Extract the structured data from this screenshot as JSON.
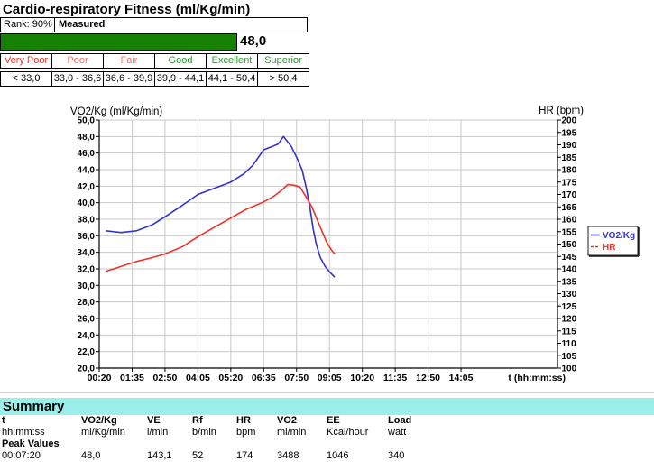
{
  "header": {
    "title": "Cardio-respiratory Fitness (ml/Kg/min)"
  },
  "fitness": {
    "rank_label": "Rank: 90%",
    "measured_label": "Measured",
    "value_label": "48,0",
    "bar_color": "#168000",
    "categories": [
      {
        "label": "Very Poor",
        "range": "< 33,0",
        "color": "#e23325"
      },
      {
        "label": "Poor",
        "range": "33,0 - 36,6",
        "color": "#ef7164"
      },
      {
        "label": "Fair",
        "range": "36,6 - 39,9",
        "color": "#ef7164"
      },
      {
        "label": "Good",
        "range": "39,9 - 44,1",
        "color": "#2e9b34"
      },
      {
        "label": "Excellent",
        "range": "44,1 - 50,4",
        "color": "#2e9b34"
      },
      {
        "label": "Superior",
        "range": "> 50,4",
        "color": "#2e9b34"
      }
    ]
  },
  "chart_data": {
    "type": "line",
    "left_axis": {
      "title": "VO2/Kg (ml/Kg/min)",
      "min": 20,
      "max": 50,
      "step": 2,
      "tick_labels": [
        "50,0",
        "48,0",
        "46,0",
        "44,0",
        "42,0",
        "40,0",
        "38,0",
        "36,0",
        "34,0",
        "32,0",
        "30,0",
        "28,0",
        "26,0",
        "24,0",
        "22,0",
        "20,0"
      ]
    },
    "right_axis": {
      "title": "HR (bpm)",
      "min": 100,
      "max": 200,
      "step": 5,
      "tick_labels": [
        "200",
        "195",
        "190",
        "185",
        "180",
        "175",
        "170",
        "165",
        "160",
        "155",
        "150",
        "145",
        "140",
        "135",
        "130",
        "125",
        "120",
        "115",
        "110",
        "105",
        "100"
      ]
    },
    "x_axis": {
      "title": "t (hh:mm:ss)",
      "t_min": 20,
      "t_max": 1065,
      "ticks": [
        {
          "label": "00:20",
          "t": 20
        },
        {
          "label": "01:35",
          "t": 95
        },
        {
          "label": "02:50",
          "t": 170
        },
        {
          "label": "04:05",
          "t": 245
        },
        {
          "label": "05:20",
          "t": 320
        },
        {
          "label": "06:35",
          "t": 395
        },
        {
          "label": "07:50",
          "t": 470
        },
        {
          "label": "09:05",
          "t": 545
        },
        {
          "label": "10:20",
          "t": 620
        },
        {
          "label": "11:35",
          "t": 695
        },
        {
          "label": "12:50",
          "t": 770
        },
        {
          "label": "14:05",
          "t": 845
        }
      ]
    },
    "grid": true,
    "legend_position": "right",
    "series": [
      {
        "name": "VO2/Kg",
        "axis": "left",
        "color": "#3333cc",
        "legend_dash": "",
        "points": [
          [
            35,
            36.6
          ],
          [
            70,
            36.4
          ],
          [
            105,
            36.6
          ],
          [
            140,
            37.3
          ],
          [
            170,
            38.3
          ],
          [
            210,
            39.7
          ],
          [
            245,
            41.0
          ],
          [
            280,
            41.7
          ],
          [
            320,
            42.5
          ],
          [
            350,
            43.5
          ],
          [
            370,
            44.5
          ],
          [
            395,
            46.4
          ],
          [
            415,
            46.8
          ],
          [
            428,
            47.1
          ],
          [
            440,
            48.0
          ],
          [
            458,
            46.8
          ],
          [
            472,
            45.3
          ],
          [
            483,
            43.9
          ],
          [
            492,
            41.8
          ],
          [
            500,
            39.6
          ],
          [
            508,
            36.8
          ],
          [
            515,
            35.0
          ],
          [
            524,
            33.4
          ],
          [
            535,
            32.3
          ],
          [
            546,
            31.6
          ],
          [
            557,
            31.0
          ]
        ]
      },
      {
        "name": "HR",
        "axis": "right",
        "color": "#ee3428",
        "legend_dash": "3,2",
        "points": [
          [
            35,
            139
          ],
          [
            70,
            141
          ],
          [
            105,
            143
          ],
          [
            140,
            144.5
          ],
          [
            170,
            146
          ],
          [
            210,
            149
          ],
          [
            245,
            153
          ],
          [
            280,
            156.5
          ],
          [
            320,
            160.5
          ],
          [
            355,
            164
          ],
          [
            395,
            167
          ],
          [
            420,
            169.5
          ],
          [
            438,
            172
          ],
          [
            450,
            174
          ],
          [
            465,
            173.7
          ],
          [
            478,
            173
          ],
          [
            490,
            169.5
          ],
          [
            505,
            165
          ],
          [
            520,
            158.5
          ],
          [
            538,
            151
          ],
          [
            548,
            148
          ],
          [
            557,
            146
          ]
        ]
      }
    ]
  },
  "summary": {
    "heading": "Summary",
    "band_color": "#9aefea",
    "columns": [
      {
        "name": "t",
        "unit": "hh:mm:ss"
      },
      {
        "name": "VO2/Kg",
        "unit": "ml/Kg/min"
      },
      {
        "name": "VE",
        "unit": "l/min"
      },
      {
        "name": "Rf",
        "unit": "b/min"
      },
      {
        "name": "HR",
        "unit": "bpm"
      },
      {
        "name": "VO2",
        "unit": "ml/min"
      },
      {
        "name": "EE",
        "unit": "Kcal/hour"
      },
      {
        "name": "Load",
        "unit": "watt"
      }
    ],
    "row_label": "Peak Values",
    "values": [
      "00:07:20",
      "48,0",
      "143,1",
      "52",
      "174",
      "3488",
      "1046",
      "340"
    ]
  }
}
